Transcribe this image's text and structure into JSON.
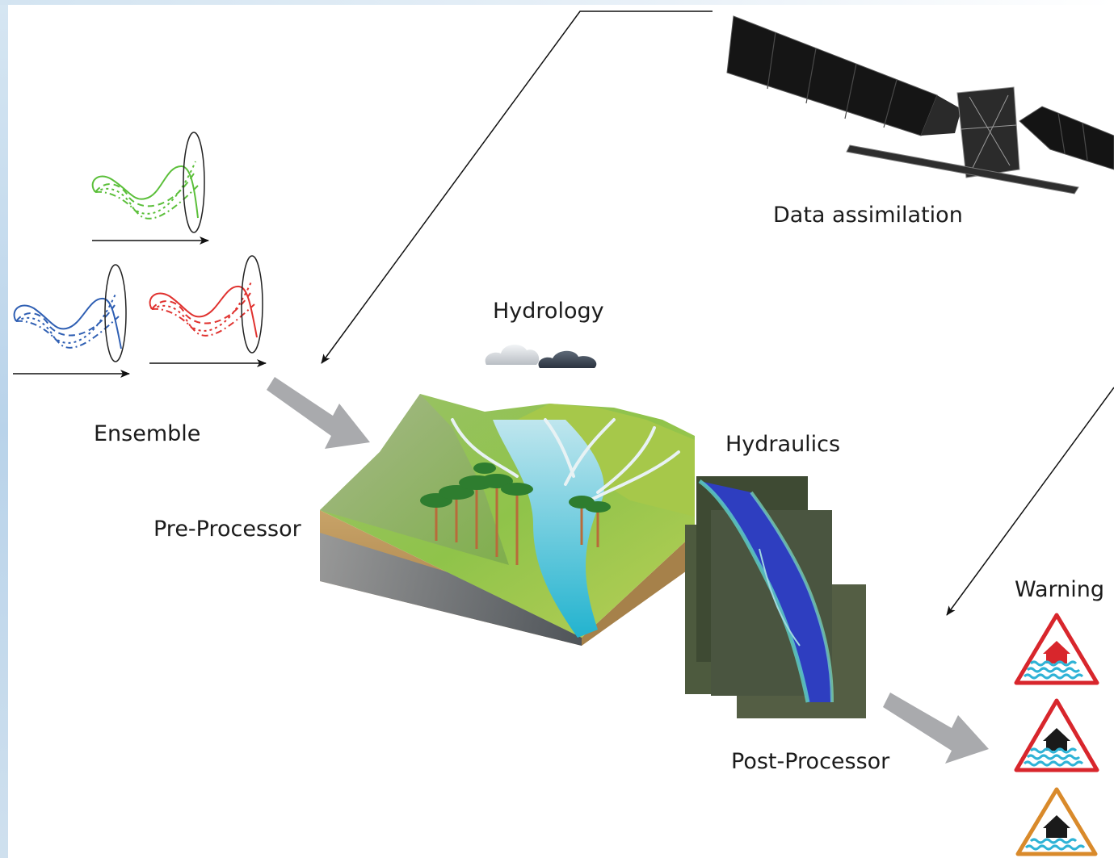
{
  "labels": {
    "data_assimilation": "Data assimilation",
    "hydrology": "Hydrology",
    "ensemble": "Ensemble",
    "pre_processor": "Pre-Processor",
    "hydraulics": "Hydraulics",
    "post_processor": "Post-Processor",
    "warning": "Warning"
  },
  "colors": {
    "ensemble_green": "#5bbf3a",
    "ensemble_blue": "#2f5fb3",
    "ensemble_red": "#e0322f",
    "flow_arrow": "#a9aaad",
    "warning_red": "#d8262c",
    "warning_orange": "#d98a2b",
    "water": "#2fb3d6",
    "flood_blue": "#2e3ec0"
  },
  "icons": {
    "satellite": "satellite-icon",
    "clouds": "cloud-icon",
    "landscape": "landscape-block-icon",
    "flood_map": "flood-map-icon",
    "warnings": [
      "flood-warning-severe-icon",
      "flood-warning-icon",
      "flood-alert-icon"
    ]
  }
}
